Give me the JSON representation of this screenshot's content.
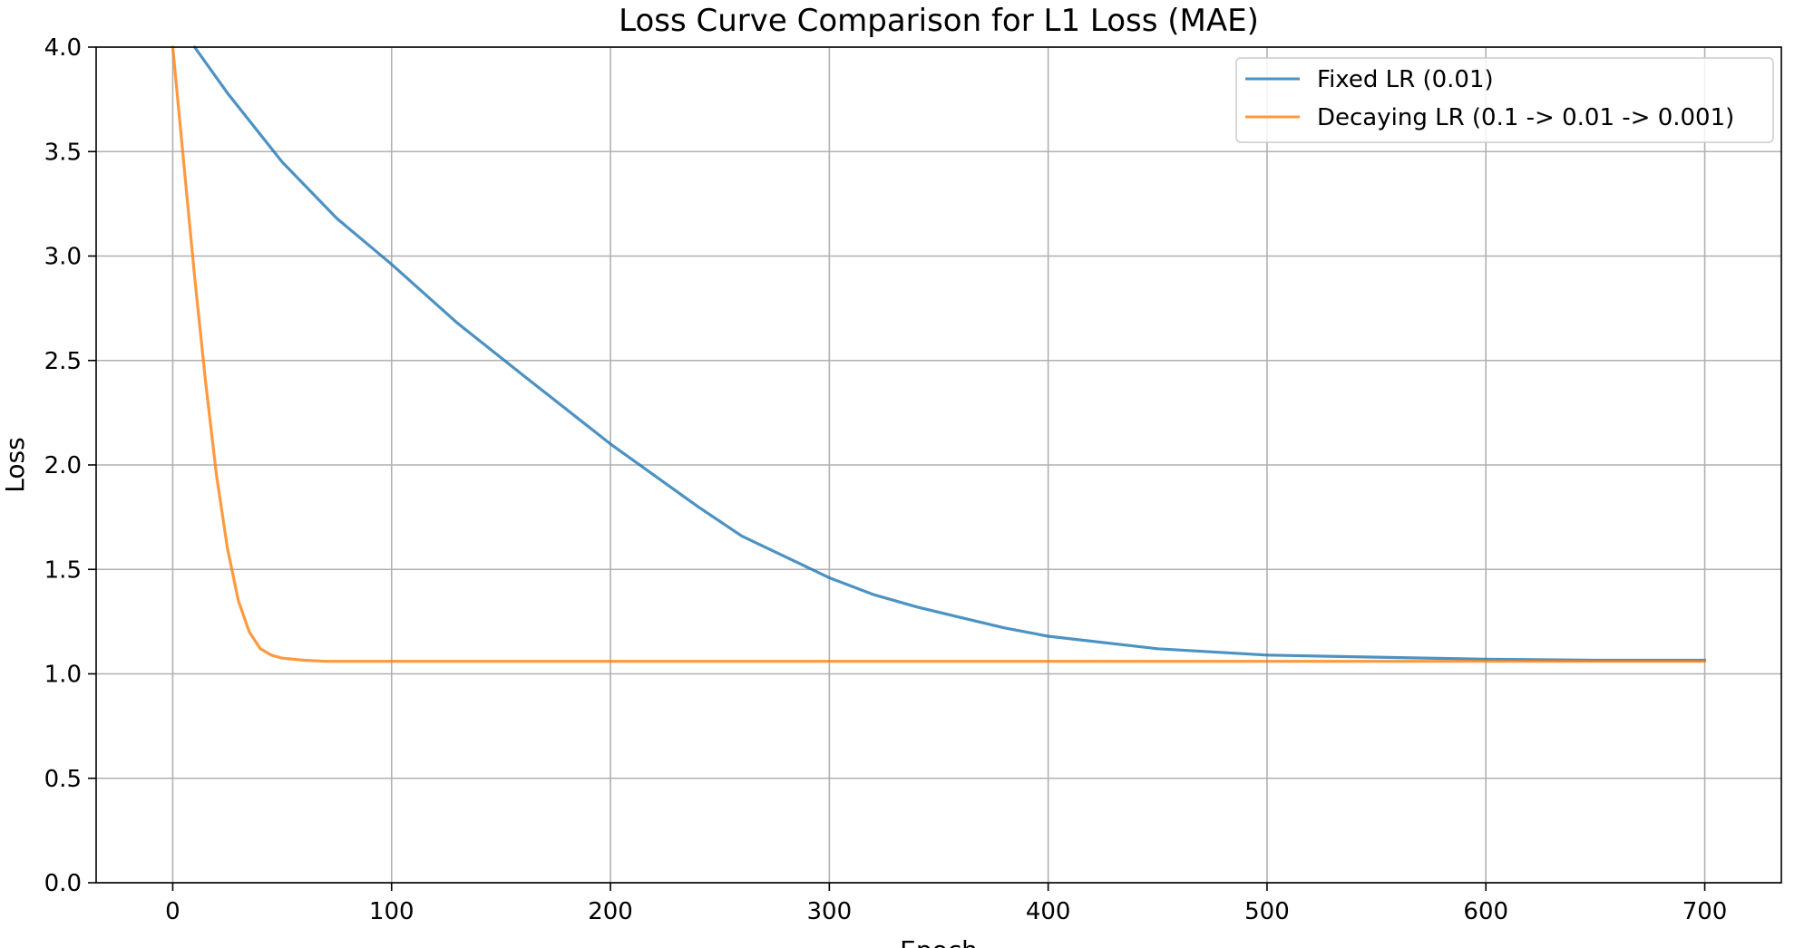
{
  "chart_data": {
    "type": "line",
    "title": "Loss Curve Comparison for L1 Loss (MAE)",
    "xlabel": "Epoch",
    "ylabel": "Loss",
    "xlim": [
      -35,
      735
    ],
    "ylim": [
      0.0,
      4.0
    ],
    "x_ticks": [
      "0",
      "100",
      "200",
      "300",
      "400",
      "500",
      "600",
      "700"
    ],
    "y_ticks": [
      "0.0",
      "0.5",
      "1.0",
      "1.5",
      "2.0",
      "2.5",
      "3.0",
      "3.5",
      "4.0"
    ],
    "grid": true,
    "legend_position": "top-right",
    "series": [
      {
        "name": "Fixed LR (0.01)",
        "color": "#1f77b4",
        "x": [
          10,
          25,
          50,
          75,
          100,
          130,
          160,
          200,
          240,
          260,
          280,
          300,
          320,
          340,
          360,
          380,
          400,
          450,
          500,
          550,
          600,
          650,
          700
        ],
        "y": [
          4.0,
          3.78,
          3.45,
          3.18,
          2.96,
          2.68,
          2.43,
          2.1,
          1.8,
          1.66,
          1.56,
          1.46,
          1.38,
          1.32,
          1.27,
          1.22,
          1.18,
          1.12,
          1.09,
          1.08,
          1.07,
          1.065,
          1.065
        ]
      },
      {
        "name": "Decaying LR (0.1 -> 0.01 -> 0.001)",
        "color": "#ff7f0e",
        "x": [
          0,
          5,
          10,
          15,
          20,
          25,
          30,
          35,
          40,
          45,
          50,
          60,
          70,
          100,
          200,
          300,
          400,
          500,
          600,
          700
        ],
        "y": [
          4.0,
          3.45,
          2.9,
          2.4,
          1.95,
          1.6,
          1.35,
          1.2,
          1.12,
          1.09,
          1.075,
          1.065,
          1.06,
          1.06,
          1.06,
          1.06,
          1.06,
          1.06,
          1.06,
          1.06
        ]
      }
    ]
  }
}
